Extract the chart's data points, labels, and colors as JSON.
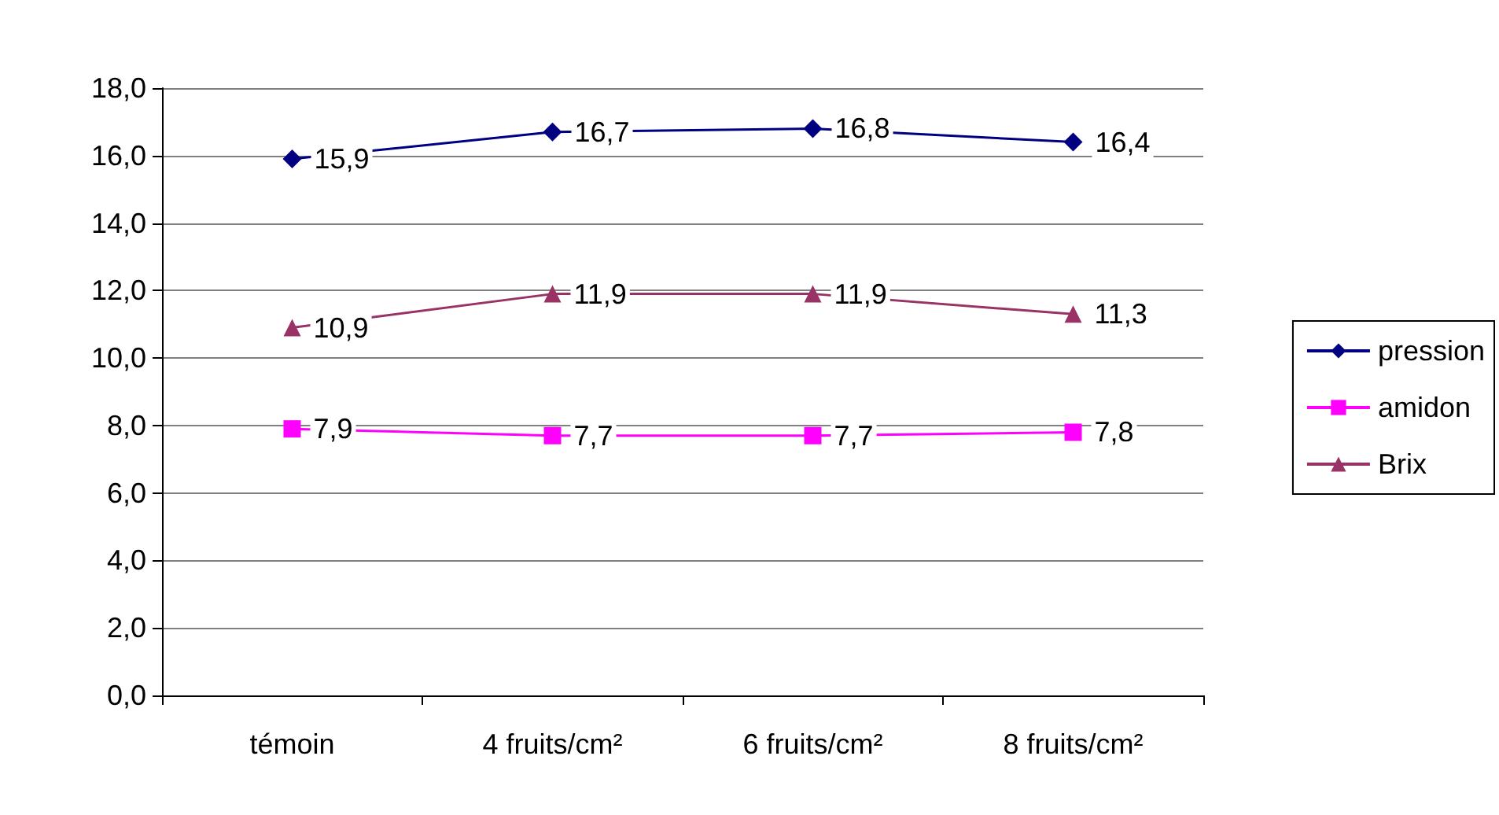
{
  "chart_data": {
    "type": "line",
    "categories": [
      "témoin",
      "4 fruits/cm²",
      "6 fruits/cm²",
      "8 fruits/cm²"
    ],
    "series": [
      {
        "name": "pression",
        "color": "#000080",
        "marker": "diamond",
        "values": [
          15.9,
          16.7,
          16.8,
          16.4
        ],
        "value_labels": [
          "15,9",
          "16,7",
          "16,8",
          "16,4"
        ]
      },
      {
        "name": "amidon",
        "color": "#ff00ff",
        "marker": "square",
        "values": [
          7.9,
          7.7,
          7.7,
          7.8
        ],
        "value_labels": [
          "7,9",
          "7,7",
          "7,7",
          "7,8"
        ]
      },
      {
        "name": "Brix",
        "color": "#993366",
        "marker": "triangle",
        "values": [
          10.9,
          11.9,
          11.9,
          11.3
        ],
        "value_labels": [
          "10,9",
          "11,9",
          "11,9",
          "11,3"
        ]
      }
    ],
    "ylim": [
      0,
      18
    ],
    "yticks": [
      {
        "value": 0,
        "label": "0,0"
      },
      {
        "value": 2,
        "label": "2,0"
      },
      {
        "value": 4,
        "label": "4,0"
      },
      {
        "value": 6,
        "label": "6,0"
      },
      {
        "value": 8,
        "label": "8,0"
      },
      {
        "value": 10,
        "label": "10,0"
      },
      {
        "value": 12,
        "label": "12,0"
      },
      {
        "value": 14,
        "label": "14,0"
      },
      {
        "value": 16,
        "label": "16,0"
      },
      {
        "value": 18,
        "label": "18,0"
      }
    ],
    "grid": "y",
    "legend": "right",
    "line_style": "solid"
  }
}
